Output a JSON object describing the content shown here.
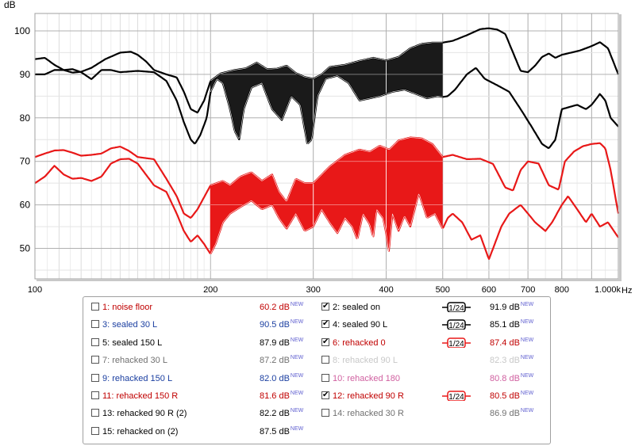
{
  "chart_data": {
    "type": "line",
    "xscale": "log",
    "xlim": [
      100,
      1000
    ],
    "ylim": [
      43,
      104
    ],
    "ylabel": "dB",
    "xunit": "Hz",
    "y_ticks": [
      "100",
      "90",
      "80",
      "70",
      "60",
      "50"
    ],
    "x_ticks": [
      "100",
      "200",
      "300",
      "400",
      "500",
      "600",
      "700",
      "800",
      "1.000k"
    ],
    "colors": {
      "black": "#000000",
      "red": "#e81818",
      "grid": "#c0c0c0",
      "grid_major": "#a8a8a8"
    },
    "series": [
      {
        "name": "2: sealed on",
        "color": "#000000",
        "points": [
          [
            100,
            93.5
          ],
          [
            104,
            93.8
          ],
          [
            108,
            92.2
          ],
          [
            112,
            91
          ],
          [
            116,
            90.4
          ],
          [
            120,
            90.6
          ],
          [
            125,
            91.5
          ],
          [
            132,
            93.5
          ],
          [
            140,
            95
          ],
          [
            146,
            95.2
          ],
          [
            150,
            94.5
          ],
          [
            155,
            93
          ],
          [
            160,
            91
          ],
          [
            168,
            90
          ],
          [
            175,
            89.3
          ],
          [
            180,
            86
          ],
          [
            185,
            82
          ],
          [
            190,
            81.2
          ],
          [
            195,
            84
          ],
          [
            200,
            88.5
          ],
          [
            208,
            90.2
          ],
          [
            220,
            91
          ],
          [
            230,
            91.4
          ],
          [
            240,
            92.7
          ],
          [
            250,
            91.2
          ],
          [
            260,
            91.3
          ],
          [
            270,
            92
          ],
          [
            280,
            90.3
          ],
          [
            290,
            89.4
          ],
          [
            300,
            89
          ],
          [
            310,
            90
          ],
          [
            320,
            91.7
          ],
          [
            340,
            92.2
          ],
          [
            360,
            93.1
          ],
          [
            380,
            93.8
          ],
          [
            400,
            93.2
          ],
          [
            420,
            94
          ],
          [
            440,
            96
          ],
          [
            460,
            97
          ],
          [
            480,
            97.3
          ],
          [
            500,
            97.3
          ],
          [
            520,
            97.7
          ],
          [
            550,
            99
          ],
          [
            580,
            100.4
          ],
          [
            600,
            100.6
          ],
          [
            620,
            100.3
          ],
          [
            640,
            99.3
          ],
          [
            660,
            95
          ],
          [
            680,
            90.8
          ],
          [
            700,
            90.5
          ],
          [
            720,
            92
          ],
          [
            740,
            94
          ],
          [
            760,
            94.8
          ],
          [
            780,
            93.8
          ],
          [
            800,
            94.5
          ],
          [
            830,
            95
          ],
          [
            860,
            95.5
          ],
          [
            900,
            96.5
          ],
          [
            930,
            97.4
          ],
          [
            960,
            96
          ],
          [
            1000,
            90
          ]
        ]
      },
      {
        "name": "4: sealed 90 L",
        "color": "#000000",
        "points": [
          [
            100,
            90
          ],
          [
            104,
            90
          ],
          [
            108,
            91
          ],
          [
            112,
            91
          ],
          [
            116,
            91.2
          ],
          [
            120,
            90.5
          ],
          [
            125,
            88.9
          ],
          [
            130,
            91
          ],
          [
            135,
            91
          ],
          [
            140,
            90.5
          ],
          [
            150,
            90.8
          ],
          [
            160,
            90.5
          ],
          [
            168,
            88.5
          ],
          [
            175,
            84
          ],
          [
            180,
            79
          ],
          [
            185,
            75
          ],
          [
            188,
            74
          ],
          [
            192,
            76
          ],
          [
            197,
            80
          ],
          [
            200,
            86
          ],
          [
            205,
            89
          ],
          [
            210,
            88
          ],
          [
            216,
            82
          ],
          [
            220,
            77
          ],
          [
            224,
            75
          ],
          [
            228,
            82
          ],
          [
            235,
            87
          ],
          [
            245,
            88
          ],
          [
            255,
            82
          ],
          [
            265,
            79.5
          ],
          [
            275,
            85
          ],
          [
            285,
            83
          ],
          [
            293,
            74
          ],
          [
            298,
            75
          ],
          [
            305,
            85
          ],
          [
            315,
            89
          ],
          [
            330,
            89.7
          ],
          [
            345,
            88
          ],
          [
            360,
            84
          ],
          [
            375,
            84.5
          ],
          [
            390,
            85
          ],
          [
            410,
            86
          ],
          [
            430,
            86.5
          ],
          [
            450,
            85.5
          ],
          [
            470,
            84.5
          ],
          [
            490,
            85
          ],
          [
            500,
            84.8
          ],
          [
            510,
            85
          ],
          [
            525,
            86.5
          ],
          [
            550,
            90
          ],
          [
            570,
            91.5
          ],
          [
            590,
            89
          ],
          [
            620,
            87.5
          ],
          [
            650,
            86
          ],
          [
            680,
            82
          ],
          [
            710,
            78
          ],
          [
            740,
            74
          ],
          [
            760,
            73
          ],
          [
            780,
            75
          ],
          [
            800,
            82
          ],
          [
            850,
            83
          ],
          [
            880,
            82
          ],
          [
            900,
            83
          ],
          [
            930,
            85.5
          ],
          [
            950,
            84
          ],
          [
            970,
            80
          ],
          [
            1000,
            78
          ]
        ]
      },
      {
        "name": "6: rehacked 0",
        "color": "#e81818",
        "points": [
          [
            100,
            71
          ],
          [
            104,
            71.8
          ],
          [
            108,
            72.5
          ],
          [
            112,
            72.6
          ],
          [
            116,
            72
          ],
          [
            120,
            71.3
          ],
          [
            125,
            71.5
          ],
          [
            130,
            71.8
          ],
          [
            135,
            73
          ],
          [
            140,
            73.4
          ],
          [
            145,
            72.4
          ],
          [
            150,
            71
          ],
          [
            160,
            70.5
          ],
          [
            168,
            66
          ],
          [
            175,
            62
          ],
          [
            180,
            58
          ],
          [
            185,
            57
          ],
          [
            190,
            59
          ],
          [
            200,
            64.5
          ],
          [
            210,
            65.5
          ],
          [
            216,
            64.5
          ],
          [
            225,
            66.5
          ],
          [
            235,
            67.5
          ],
          [
            245,
            65.5
          ],
          [
            255,
            67
          ],
          [
            262,
            63
          ],
          [
            270,
            60.7
          ],
          [
            280,
            66
          ],
          [
            290,
            65
          ],
          [
            300,
            65
          ],
          [
            320,
            68.8
          ],
          [
            340,
            71.5
          ],
          [
            360,
            72.7
          ],
          [
            375,
            72.2
          ],
          [
            390,
            73.6
          ],
          [
            405,
            72.7
          ],
          [
            420,
            74.8
          ],
          [
            440,
            75.5
          ],
          [
            460,
            75.3
          ],
          [
            480,
            74
          ],
          [
            500,
            71
          ],
          [
            520,
            71.5
          ],
          [
            550,
            70.5
          ],
          [
            580,
            70.6
          ],
          [
            610,
            69.4
          ],
          [
            640,
            64
          ],
          [
            660,
            63.3
          ],
          [
            680,
            68
          ],
          [
            700,
            70
          ],
          [
            730,
            69.5
          ],
          [
            760,
            64.5
          ],
          [
            790,
            63.5
          ],
          [
            810,
            70
          ],
          [
            840,
            72.3
          ],
          [
            870,
            73.5
          ],
          [
            900,
            74
          ],
          [
            930,
            74.2
          ],
          [
            950,
            73
          ],
          [
            970,
            68
          ],
          [
            1000,
            58
          ]
        ]
      },
      {
        "name": "12: rehacked 90 R",
        "color": "#e81818",
        "points": [
          [
            100,
            65
          ],
          [
            104,
            66.5
          ],
          [
            108,
            69
          ],
          [
            112,
            67
          ],
          [
            116,
            66
          ],
          [
            120,
            66.2
          ],
          [
            125,
            65.5
          ],
          [
            130,
            66.5
          ],
          [
            135,
            69.5
          ],
          [
            140,
            70.5
          ],
          [
            145,
            70.6
          ],
          [
            150,
            69.5
          ],
          [
            160,
            64.5
          ],
          [
            168,
            63
          ],
          [
            175,
            58
          ],
          [
            180,
            54
          ],
          [
            185,
            51.5
          ],
          [
            190,
            53
          ],
          [
            195,
            51
          ],
          [
            200,
            48.7
          ],
          [
            204,
            51
          ],
          [
            210,
            56
          ],
          [
            216,
            58
          ],
          [
            225,
            59.5
          ],
          [
            235,
            61
          ],
          [
            245,
            59
          ],
          [
            255,
            60
          ],
          [
            262,
            57
          ],
          [
            270,
            54.5
          ],
          [
            280,
            58
          ],
          [
            290,
            54
          ],
          [
            300,
            55
          ],
          [
            310,
            59
          ],
          [
            320,
            56
          ],
          [
            330,
            53.5
          ],
          [
            340,
            57
          ],
          [
            350,
            55
          ],
          [
            357,
            52
          ],
          [
            365,
            58
          ],
          [
            375,
            55.5
          ],
          [
            380,
            52.5
          ],
          [
            385,
            59
          ],
          [
            395,
            57
          ],
          [
            400,
            53.5
          ],
          [
            404,
            49
          ],
          [
            410,
            58
          ],
          [
            420,
            54
          ],
          [
            430,
            57.5
          ],
          [
            440,
            55
          ],
          [
            455,
            62.7
          ],
          [
            470,
            57
          ],
          [
            485,
            58
          ],
          [
            500,
            54.5
          ],
          [
            510,
            57
          ],
          [
            520,
            58
          ],
          [
            540,
            56
          ],
          [
            560,
            52
          ],
          [
            580,
            53
          ],
          [
            600,
            47.5
          ],
          [
            610,
            50
          ],
          [
            630,
            55
          ],
          [
            650,
            58
          ],
          [
            680,
            60
          ],
          [
            700,
            58
          ],
          [
            720,
            56
          ],
          [
            750,
            54
          ],
          [
            770,
            56
          ],
          [
            800,
            60
          ],
          [
            820,
            62
          ],
          [
            850,
            59
          ],
          [
            880,
            56
          ],
          [
            900,
            58
          ],
          [
            930,
            55
          ],
          [
            960,
            56
          ],
          [
            1000,
            52.5
          ]
        ]
      }
    ],
    "fill_range_hz": [
      200,
      500
    ]
  },
  "legend": {
    "new_badge": "NEW",
    "smoothing_label": "1/24",
    "items": [
      {
        "label": "1: noise floor",
        "value": "60.2 dB",
        "checked": false,
        "color": "#c00000",
        "smooth": false
      },
      {
        "label": "2: sealed on",
        "value": "91.9 dB",
        "checked": true,
        "color": "#000000",
        "smooth": true,
        "smooth_color": "#000000"
      },
      {
        "label": "3: sealed 30 L",
        "value": "90.5 dB",
        "checked": false,
        "color": "#1a3ea0",
        "smooth": false
      },
      {
        "label": "4: sealed 90 L",
        "value": "85.1 dB",
        "checked": true,
        "color": "#000000",
        "smooth": true,
        "smooth_color": "#000000"
      },
      {
        "label": "5: sealed 150 L",
        "value": "87.9 dB",
        "checked": false,
        "color": "#000000",
        "smooth": false
      },
      {
        "label": "6: rehacked 0",
        "value": "87.4 dB",
        "checked": true,
        "color": "#c00000",
        "smooth": true,
        "smooth_color": "#e81818"
      },
      {
        "label": "7: rehacked 30 L",
        "value": "87.2 dB",
        "checked": false,
        "color": "#707070",
        "smooth": false
      },
      {
        "label": "8: rehacked 90 L",
        "value": "82.3 dB",
        "checked": false,
        "color": "#c8c8c8",
        "smooth": false
      },
      {
        "label": "9: rehacked 150 L",
        "value": "82.0 dB",
        "checked": false,
        "color": "#1a3ea0",
        "smooth": false
      },
      {
        "label": "10: rehacked 180",
        "value": "80.8 dB",
        "checked": false,
        "color": "#d060a0",
        "smooth": false
      },
      {
        "label": "11: rehacked 150 R",
        "value": "81.6 dB",
        "checked": false,
        "color": "#c00000",
        "smooth": false
      },
      {
        "label": "12: rehacked 90 R",
        "value": "80.5 dB",
        "checked": true,
        "color": "#c00000",
        "smooth": true,
        "smooth_color": "#e81818"
      },
      {
        "label": "13: rehacked 90 R (2)",
        "value": "82.2 dB",
        "checked": false,
        "color": "#000000",
        "smooth": false
      },
      {
        "label": "14: rehacked 30 R",
        "value": "86.9 dB",
        "checked": false,
        "color": "#707070",
        "smooth": false
      },
      {
        "label": "15: rehacked on (2)",
        "value": "87.5 dB",
        "checked": false,
        "color": "#000000",
        "smooth": false
      }
    ]
  }
}
